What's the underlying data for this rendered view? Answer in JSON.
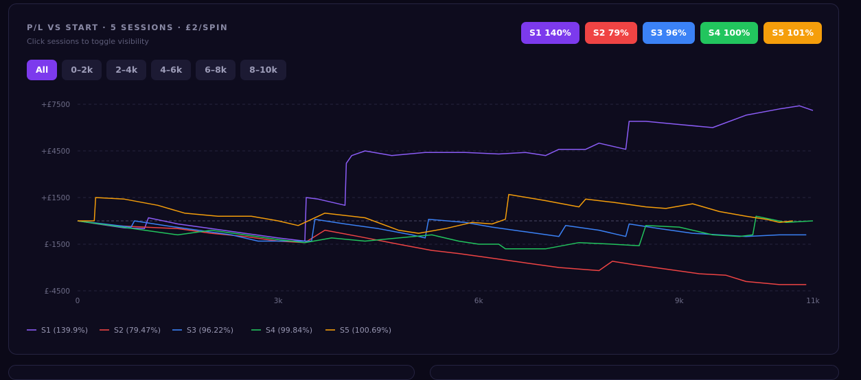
{
  "header": {
    "title": "P/L VS START · 5 SESSIONS · £2/SPIN",
    "subtitle": "Click sessions to toggle visibility"
  },
  "ranges": [
    {
      "label": "All",
      "active": true
    },
    {
      "label": "0–2k",
      "active": false
    },
    {
      "label": "2–4k",
      "active": false
    },
    {
      "label": "4–6k",
      "active": false
    },
    {
      "label": "6–8k",
      "active": false
    },
    {
      "label": "8–10k",
      "active": false
    }
  ],
  "badges": [
    {
      "label": "S1 140%",
      "color": "#7c3aed"
    },
    {
      "label": "S2 79%",
      "color": "#ef4444"
    },
    {
      "label": "S3 96%",
      "color": "#3b82f6"
    },
    {
      "label": "S4 100%",
      "color": "#22c55e"
    },
    {
      "label": "S5 101%",
      "color": "#f59e0b"
    }
  ],
  "chart_data": {
    "type": "line",
    "x_ticks": [
      0,
      3000,
      6000,
      9000,
      11000
    ],
    "x_tick_labels": [
      "0",
      "3k",
      "6k",
      "9k",
      "11k"
    ],
    "y_ticks": [
      7500,
      4500,
      1500,
      -1500,
      -4500
    ],
    "y_tick_labels": [
      "+£7500",
      "+£4500",
      "+£1500",
      "£-1500",
      "£-4500"
    ],
    "xlim": [
      0,
      11000
    ],
    "ylim": [
      -4500,
      7500
    ],
    "grid": true,
    "zero_line": true,
    "legend_position": "bottom-left",
    "series": [
      {
        "name": "S1 (139.9%)",
        "color": "#8b5cf6",
        "points": [
          [
            0,
            0
          ],
          [
            300,
            -200
          ],
          [
            700,
            -450
          ],
          [
            1000,
            -500
          ],
          [
            1060,
            200
          ],
          [
            1500,
            -200
          ],
          [
            2000,
            -500
          ],
          [
            2500,
            -800
          ],
          [
            3000,
            -1100
          ],
          [
            3400,
            -1300
          ],
          [
            3420,
            1500
          ],
          [
            3600,
            1400
          ],
          [
            4000,
            1000
          ],
          [
            4020,
            3700
          ],
          [
            4100,
            4200
          ],
          [
            4300,
            4500
          ],
          [
            4700,
            4200
          ],
          [
            5200,
            4400
          ],
          [
            5800,
            4400
          ],
          [
            6300,
            4300
          ],
          [
            6700,
            4400
          ],
          [
            7000,
            4200
          ],
          [
            7200,
            4600
          ],
          [
            7600,
            4600
          ],
          [
            7800,
            5000
          ],
          [
            8000,
            4800
          ],
          [
            8200,
            4600
          ],
          [
            8250,
            6400
          ],
          [
            8500,
            6400
          ],
          [
            9000,
            6200
          ],
          [
            9500,
            6000
          ],
          [
            10000,
            6800
          ],
          [
            10500,
            7200
          ],
          [
            10800,
            7400
          ],
          [
            11000,
            7100
          ]
        ]
      },
      {
        "name": "S2 (79.47%)",
        "color": "#ef4444",
        "points": [
          [
            0,
            0
          ],
          [
            500,
            -300
          ],
          [
            1000,
            -400
          ],
          [
            1500,
            -500
          ],
          [
            2000,
            -800
          ],
          [
            2500,
            -1000
          ],
          [
            3000,
            -1300
          ],
          [
            3400,
            -1400
          ],
          [
            3700,
            -600
          ],
          [
            4200,
            -1000
          ],
          [
            4800,
            -1500
          ],
          [
            5300,
            -1900
          ],
          [
            5700,
            -2100
          ],
          [
            6200,
            -2400
          ],
          [
            6700,
            -2700
          ],
          [
            7200,
            -3000
          ],
          [
            7800,
            -3200
          ],
          [
            8000,
            -2600
          ],
          [
            8300,
            -2800
          ],
          [
            8800,
            -3100
          ],
          [
            9300,
            -3400
          ],
          [
            9700,
            -3500
          ],
          [
            10000,
            -3900
          ],
          [
            10500,
            -4100
          ],
          [
            10900,
            -4100
          ]
        ]
      },
      {
        "name": "S3 (96.22%)",
        "color": "#3b82f6",
        "points": [
          [
            0,
            0
          ],
          [
            400,
            -200
          ],
          [
            800,
            -400
          ],
          [
            850,
            0
          ],
          [
            1300,
            -300
          ],
          [
            1800,
            -600
          ],
          [
            2300,
            -900
          ],
          [
            2700,
            -1300
          ],
          [
            3000,
            -1300
          ],
          [
            3500,
            -1300
          ],
          [
            3550,
            100
          ],
          [
            4000,
            -200
          ],
          [
            4500,
            -500
          ],
          [
            5000,
            -900
          ],
          [
            5200,
            -1100
          ],
          [
            5250,
            100
          ],
          [
            5800,
            -100
          ],
          [
            6200,
            -400
          ],
          [
            6700,
            -700
          ],
          [
            7200,
            -1000
          ],
          [
            7300,
            -300
          ],
          [
            7800,
            -600
          ],
          [
            8200,
            -1000
          ],
          [
            8250,
            -200
          ],
          [
            8700,
            -500
          ],
          [
            9200,
            -800
          ],
          [
            9600,
            -900
          ],
          [
            10000,
            -1000
          ],
          [
            10500,
            -900
          ],
          [
            10900,
            -900
          ]
        ]
      },
      {
        "name": "S4 (99.84%)",
        "color": "#22c55e",
        "points": [
          [
            0,
            0
          ],
          [
            500,
            -300
          ],
          [
            1000,
            -600
          ],
          [
            1500,
            -900
          ],
          [
            2000,
            -600
          ],
          [
            2500,
            -900
          ],
          [
            3000,
            -1200
          ],
          [
            3400,
            -1400
          ],
          [
            3800,
            -1100
          ],
          [
            4300,
            -1300
          ],
          [
            4800,
            -1100
          ],
          [
            5300,
            -900
          ],
          [
            5700,
            -1300
          ],
          [
            6000,
            -1500
          ],
          [
            6300,
            -1500
          ],
          [
            6400,
            -1800
          ],
          [
            7000,
            -1800
          ],
          [
            7500,
            -1400
          ],
          [
            8000,
            -1500
          ],
          [
            8400,
            -1600
          ],
          [
            8500,
            -300
          ],
          [
            9000,
            -400
          ],
          [
            9500,
            -900
          ],
          [
            9900,
            -1000
          ],
          [
            10100,
            -900
          ],
          [
            10150,
            300
          ],
          [
            10600,
            -100
          ],
          [
            11000,
            0
          ]
        ]
      },
      {
        "name": "S5 (100.69%)",
        "color": "#f59e0b",
        "points": [
          [
            0,
            0
          ],
          [
            250,
            0
          ],
          [
            270,
            1500
          ],
          [
            700,
            1400
          ],
          [
            1200,
            1000
          ],
          [
            1600,
            500
          ],
          [
            2100,
            300
          ],
          [
            2600,
            300
          ],
          [
            3000,
            0
          ],
          [
            3300,
            -300
          ],
          [
            3700,
            500
          ],
          [
            4300,
            200
          ],
          [
            4800,
            -600
          ],
          [
            5100,
            -800
          ],
          [
            5500,
            -500
          ],
          [
            5900,
            -100
          ],
          [
            6200,
            -200
          ],
          [
            6400,
            100
          ],
          [
            6450,
            1700
          ],
          [
            7000,
            1300
          ],
          [
            7500,
            900
          ],
          [
            7600,
            1400
          ],
          [
            8000,
            1200
          ],
          [
            8500,
            900
          ],
          [
            8800,
            800
          ],
          [
            9200,
            1100
          ],
          [
            9600,
            600
          ],
          [
            10000,
            300
          ],
          [
            10300,
            100
          ],
          [
            10500,
            -100
          ],
          [
            10700,
            0
          ]
        ]
      }
    ]
  }
}
